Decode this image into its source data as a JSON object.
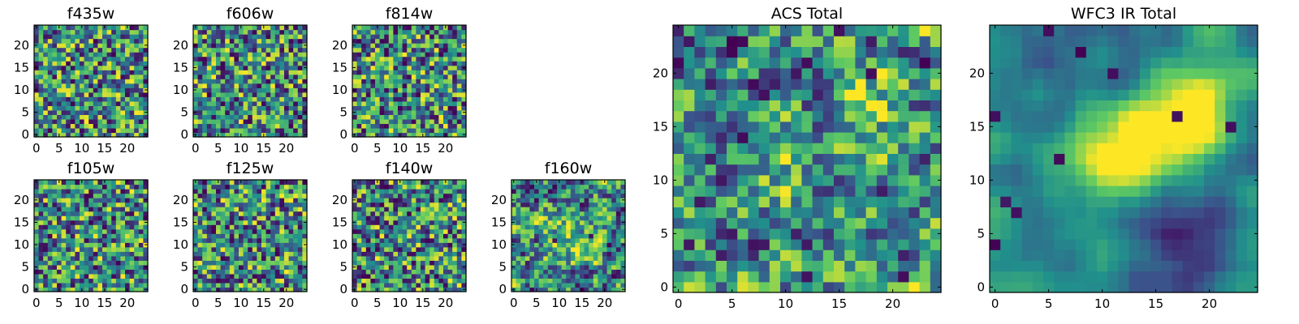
{
  "figure": {
    "colormap": "viridis",
    "colormap_stops": [
      "#440154",
      "#3b528b",
      "#21918c",
      "#5ec962",
      "#fde725"
    ],
    "background": "#ffffff",
    "axis_color": "#000000"
  },
  "chart_data": [
    {
      "type": "heatmap",
      "title": "f435w",
      "shape": [
        25,
        25
      ],
      "xlim": [
        0,
        24
      ],
      "ylim": [
        0,
        24
      ],
      "xticks": [
        "0",
        "5",
        "10",
        "15",
        "20"
      ],
      "yticks": [
        "0",
        "5",
        "10",
        "15",
        "20"
      ],
      "noise": "uniform",
      "seed": 435
    },
    {
      "type": "heatmap",
      "title": "f606w",
      "shape": [
        25,
        25
      ],
      "xlim": [
        0,
        24
      ],
      "ylim": [
        0,
        24
      ],
      "xticks": [
        "0",
        "5",
        "10",
        "15",
        "20"
      ],
      "yticks": [
        "0",
        "5",
        "10",
        "15",
        "20"
      ],
      "noise": "uniform",
      "seed": 606
    },
    {
      "type": "heatmap",
      "title": "f814w",
      "shape": [
        25,
        25
      ],
      "xlim": [
        0,
        24
      ],
      "ylim": [
        0,
        24
      ],
      "xticks": [
        "0",
        "5",
        "10",
        "15",
        "20"
      ],
      "yticks": [
        "0",
        "5",
        "10",
        "15",
        "20"
      ],
      "noise": "uniform",
      "seed": 814
    },
    {
      "type": "heatmap",
      "title": "f105w",
      "shape": [
        25,
        25
      ],
      "xlim": [
        0,
        24
      ],
      "ylim": [
        0,
        24
      ],
      "xticks": [
        "0",
        "5",
        "10",
        "15",
        "20"
      ],
      "yticks": [
        "0",
        "5",
        "10",
        "15",
        "20"
      ],
      "noise": "uniform",
      "seed": 105
    },
    {
      "type": "heatmap",
      "title": "f125w",
      "shape": [
        25,
        25
      ],
      "xlim": [
        0,
        24
      ],
      "ylim": [
        0,
        24
      ],
      "xticks": [
        "0",
        "5",
        "10",
        "15",
        "20"
      ],
      "yticks": [
        "0",
        "5",
        "10",
        "15",
        "20"
      ],
      "noise": "uniform",
      "seed": 125
    },
    {
      "type": "heatmap",
      "title": "f140w",
      "shape": [
        25,
        25
      ],
      "xlim": [
        0,
        24
      ],
      "ylim": [
        0,
        24
      ],
      "xticks": [
        "0",
        "5",
        "10",
        "15",
        "20"
      ],
      "yticks": [
        "0",
        "5",
        "10",
        "15",
        "20"
      ],
      "noise": "uniform",
      "seed": 140
    },
    {
      "type": "heatmap",
      "title": "f160w",
      "shape": [
        25,
        25
      ],
      "xlim": [
        0,
        24
      ],
      "ylim": [
        0,
        24
      ],
      "xticks": [
        "0",
        "5",
        "10",
        "15",
        "20"
      ],
      "yticks": [
        "0",
        "5",
        "10",
        "15",
        "20"
      ],
      "noise": "blobs",
      "seed": 160,
      "blobs": [
        {
          "x": 12,
          "y": 11,
          "sigma": 4,
          "amp": 0.4
        }
      ]
    },
    {
      "type": "heatmap",
      "title": "ACS Total",
      "shape": [
        25,
        25
      ],
      "xlim": [
        0,
        24
      ],
      "ylim": [
        0,
        24
      ],
      "xticks": [
        "0",
        "5",
        "10",
        "15",
        "20"
      ],
      "yticks": [
        "0",
        "5",
        "10",
        "15",
        "20"
      ],
      "noise": "blobs",
      "seed": 999,
      "blobs": [
        {
          "x": 9,
          "y": 11,
          "sigma": 2.5,
          "amp": 0.3
        },
        {
          "x": 17,
          "y": 16,
          "sigma": 2.5,
          "amp": 0.3
        }
      ]
    },
    {
      "type": "heatmap",
      "title": "WFC3 IR Total",
      "shape": [
        25,
        25
      ],
      "xlim": [
        0,
        24
      ],
      "ylim": [
        0,
        24
      ],
      "xticks": [
        "0",
        "5",
        "10",
        "15",
        "20"
      ],
      "yticks": [
        "0",
        "5",
        "10",
        "15",
        "20"
      ],
      "noise": "smooth",
      "seed": 777,
      "blobs": [
        {
          "x": 18,
          "y": 16,
          "sigma": 3,
          "amp": 0.8
        },
        {
          "x": 12,
          "y": 12,
          "sigma": 3,
          "amp": 0.6
        },
        {
          "x": 14,
          "y": 22,
          "sigma": 3,
          "amp": -0.2
        },
        {
          "x": 15,
          "y": 3,
          "sigma": 4,
          "amp": -0.25
        }
      ]
    }
  ]
}
